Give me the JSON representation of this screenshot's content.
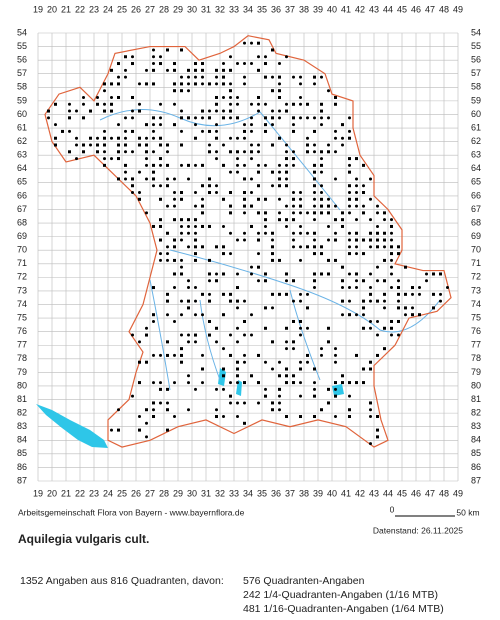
{
  "map": {
    "columns": [
      19,
      20,
      21,
      22,
      23,
      24,
      25,
      26,
      27,
      28,
      29,
      30,
      31,
      32,
      33,
      34,
      35,
      36,
      37,
      38,
      39,
      40,
      41,
      42,
      43,
      44,
      45,
      46,
      47,
      48,
      49
    ],
    "rows": [
      54,
      55,
      56,
      57,
      58,
      59,
      60,
      61,
      62,
      63,
      64,
      65,
      66,
      67,
      68,
      69,
      70,
      71,
      72,
      73,
      74,
      75,
      76,
      77,
      78,
      79,
      80,
      81,
      82,
      83,
      84,
      85,
      86,
      87
    ],
    "credit": "Arbeitsgemeinschaft Flora von Bayern - www.bayernflora.de",
    "scale_start": "0",
    "scale_end": "50 km",
    "data_date": "Datenstand: 26.11.2025",
    "species": "Aquilegia vulgaris cult.",
    "summary": "1352 Angaben aus 816 Quadranten, davon:",
    "counts": [
      "576 Quadranten-Angaben",
      "242 1/4-Quadranten-Angaben (1/16 MTB)",
      "481 1/16-Quadranten-Angaben (1/64 MTB)"
    ]
  }
}
